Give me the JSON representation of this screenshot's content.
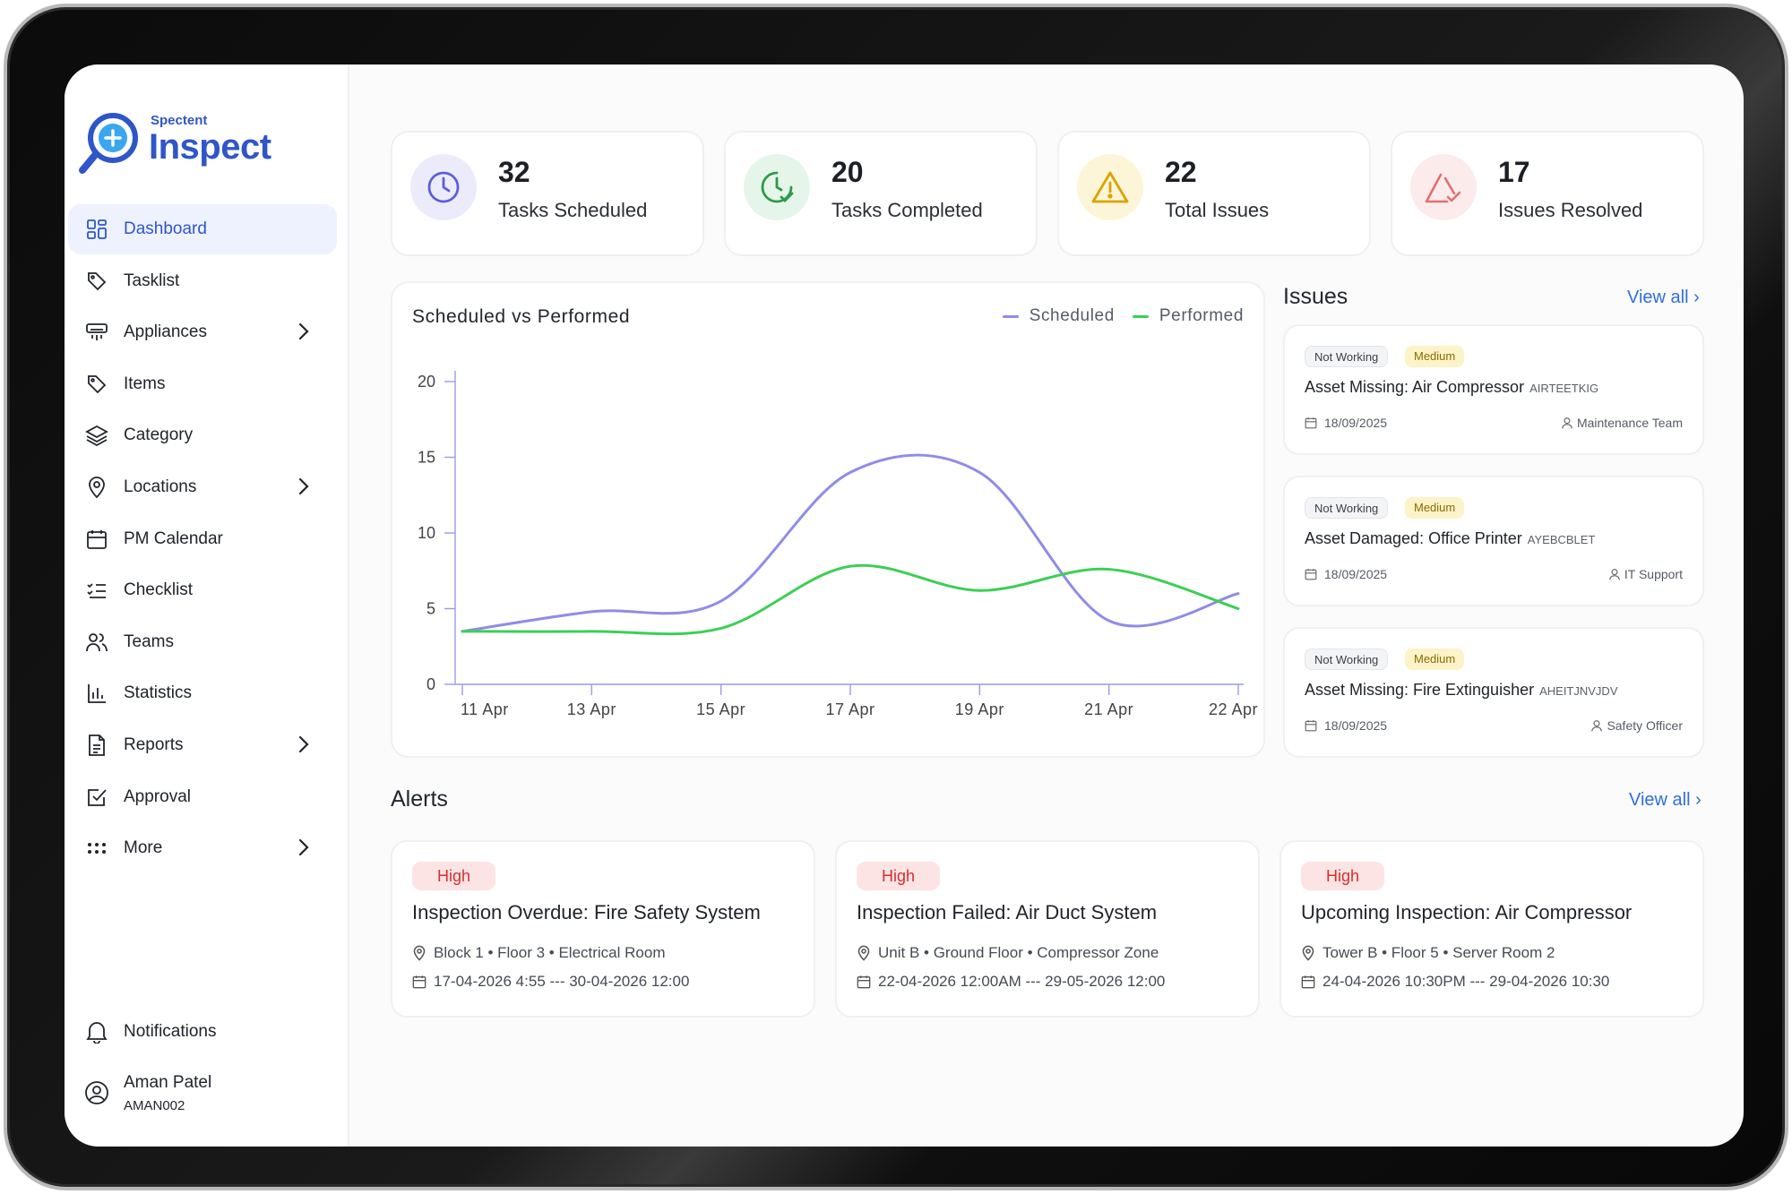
{
  "brand": {
    "small": "Spectent",
    "name": "Inspect"
  },
  "nav": [
    {
      "label": "Dashboard",
      "icon": "grid-icon",
      "active": true,
      "chevron": false
    },
    {
      "label": "Tasklist",
      "icon": "tag-icon",
      "chevron": false
    },
    {
      "label": "Appliances",
      "icon": "appliance-icon",
      "chevron": true
    },
    {
      "label": "Items",
      "icon": "tag-icon",
      "chevron": false
    },
    {
      "label": "Category",
      "icon": "layers-icon",
      "chevron": false
    },
    {
      "label": "Locations",
      "icon": "pin-icon",
      "chevron": true
    },
    {
      "label": "PM Calendar",
      "icon": "calendar-icon",
      "chevron": false
    },
    {
      "label": "Checklist",
      "icon": "checklist-icon",
      "chevron": false
    },
    {
      "label": "Teams",
      "icon": "users-icon",
      "chevron": false
    },
    {
      "label": "Statistics",
      "icon": "bar-chart-icon",
      "chevron": false
    },
    {
      "label": "Reports",
      "icon": "file-icon",
      "chevron": true
    },
    {
      "label": "Approval",
      "icon": "check-square-icon",
      "chevron": false
    },
    {
      "label": "More",
      "icon": "dots-icon",
      "chevron": true
    }
  ],
  "notifications": "Notifications",
  "user": {
    "name": "Aman Patel",
    "id": "AMAN002"
  },
  "stats": [
    {
      "value": "32",
      "label": "Tasks Scheduled",
      "color": "#5b5fd6",
      "bg": "#ecebfb"
    },
    {
      "value": "20",
      "label": "Tasks Completed",
      "color": "#2e9a48",
      "bg": "#e6f5ea"
    },
    {
      "value": "22",
      "label": "Total Issues",
      "color": "#d9a300",
      "bg": "#fcf5d8"
    },
    {
      "value": "17",
      "label": "Issues Resolved",
      "color": "#e0706f",
      "bg": "#fcebeb"
    }
  ],
  "chart": {
    "title": "Scheduled vs Performed",
    "legend": {
      "scheduled": "Scheduled",
      "performed": "Performed"
    }
  },
  "chart_data": {
    "type": "line",
    "title": "Scheduled vs Performed",
    "x": [
      "11 Apr",
      "13 Apr",
      "15 Apr",
      "17 Apr",
      "19 Apr",
      "21 Apr",
      "22 Apr"
    ],
    "ylim": [
      0,
      20
    ],
    "yticks": [
      0,
      5,
      10,
      15,
      20
    ],
    "series": [
      {
        "name": "Scheduled",
        "color": "#8f8ce8",
        "values": [
          3.5,
          4.8,
          5.5,
          14,
          14,
          4.2,
          6
        ]
      },
      {
        "name": "Performed",
        "color": "#3ccf55",
        "values": [
          3.5,
          3.5,
          3.7,
          7.8,
          6.2,
          7.6,
          5
        ]
      }
    ],
    "legend": "top-right"
  },
  "issues": {
    "title": "Issues",
    "view_all": "View all",
    "items": [
      {
        "status": "Not Working",
        "priority": "Medium",
        "title": "Asset Missing: Air Compressor",
        "code": "AIRTEETKIG",
        "date": "18/09/2025",
        "team": "Maintenance Team"
      },
      {
        "status": "Not Working",
        "priority": "Medium",
        "title": "Asset Damaged: Office Printer",
        "code": "AYEBCBLET",
        "date": "18/09/2025",
        "team": "IT Support"
      },
      {
        "status": "Not Working",
        "priority": "Medium",
        "title": "Asset Missing: Fire Extinguisher",
        "code": "AHEITJNVJDV",
        "date": "18/09/2025",
        "team": "Safety Officer"
      }
    ]
  },
  "alerts": {
    "title": "Alerts",
    "view_all": "View all",
    "items": [
      {
        "priority": "High",
        "title": "Inspection Overdue: Fire Safety System",
        "location": "Block 1 • Floor 3 • Electrical Room",
        "time": "17-04-2026 4:55 --- 30-04-2026 12:00"
      },
      {
        "priority": "High",
        "title": "Inspection Failed: Air Duct System",
        "location": "Unit B • Ground Floor • Compressor Zone",
        "time": "22-04-2026 12:00AM --- 29-05-2026 12:00"
      },
      {
        "priority": "High",
        "title": "Upcoming Inspection: Air Compressor",
        "location": "Tower B • Floor 5 • Server Room 2",
        "time": "24-04-2026 10:30PM --- 29-04-2026 10:30"
      }
    ]
  }
}
